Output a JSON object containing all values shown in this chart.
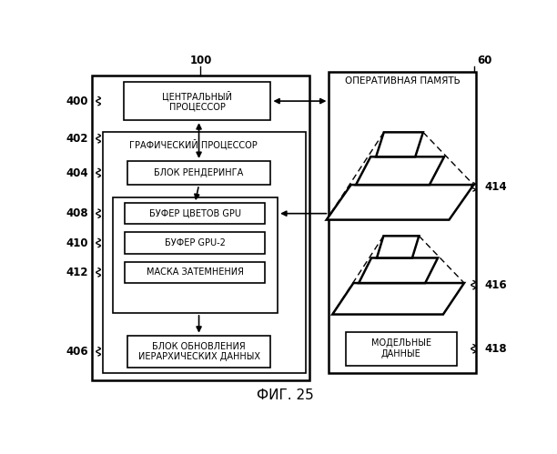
{
  "bg_color": "#ffffff",
  "title": "ФИГ. 25",
  "label_100": "100",
  "label_60": "60",
  "label_400": "400",
  "label_402": "402",
  "label_404": "404",
  "label_408": "408",
  "label_410": "410",
  "label_412": "412",
  "label_406": "406",
  "label_414": "414",
  "label_416": "416",
  "label_418": "418",
  "box_cpu_text": "ЦЕНТРАЛЬНЫЙ\nПРОЦЕССОР",
  "box_gpu_text": "ГРАФИЧЕСКИЙ ПРОЦЕССОР",
  "box_render_text": "БЛОК РЕНДЕРИНГА",
  "box_cbuf_text": "БУФЕР ЦВЕТОВ GPU",
  "box_gpu2_text": "БУФЕР GPU-2",
  "box_mask_text": "МАСКА ЗАТЕМНЕНИЯ",
  "box_update_text": "БЛОК ОБНОВЛЕНИЯ\nИЕРАРХИЧЕСКИХ ДАННЫХ",
  "box_ram_text": "ОПЕРАТИВНАЯ ПАМЯТЬ",
  "box_model_text": "МОДЕЛЬНЫЕ\nДАННЫЕ",
  "font_size_box": 7.0,
  "font_size_label": 8.5
}
